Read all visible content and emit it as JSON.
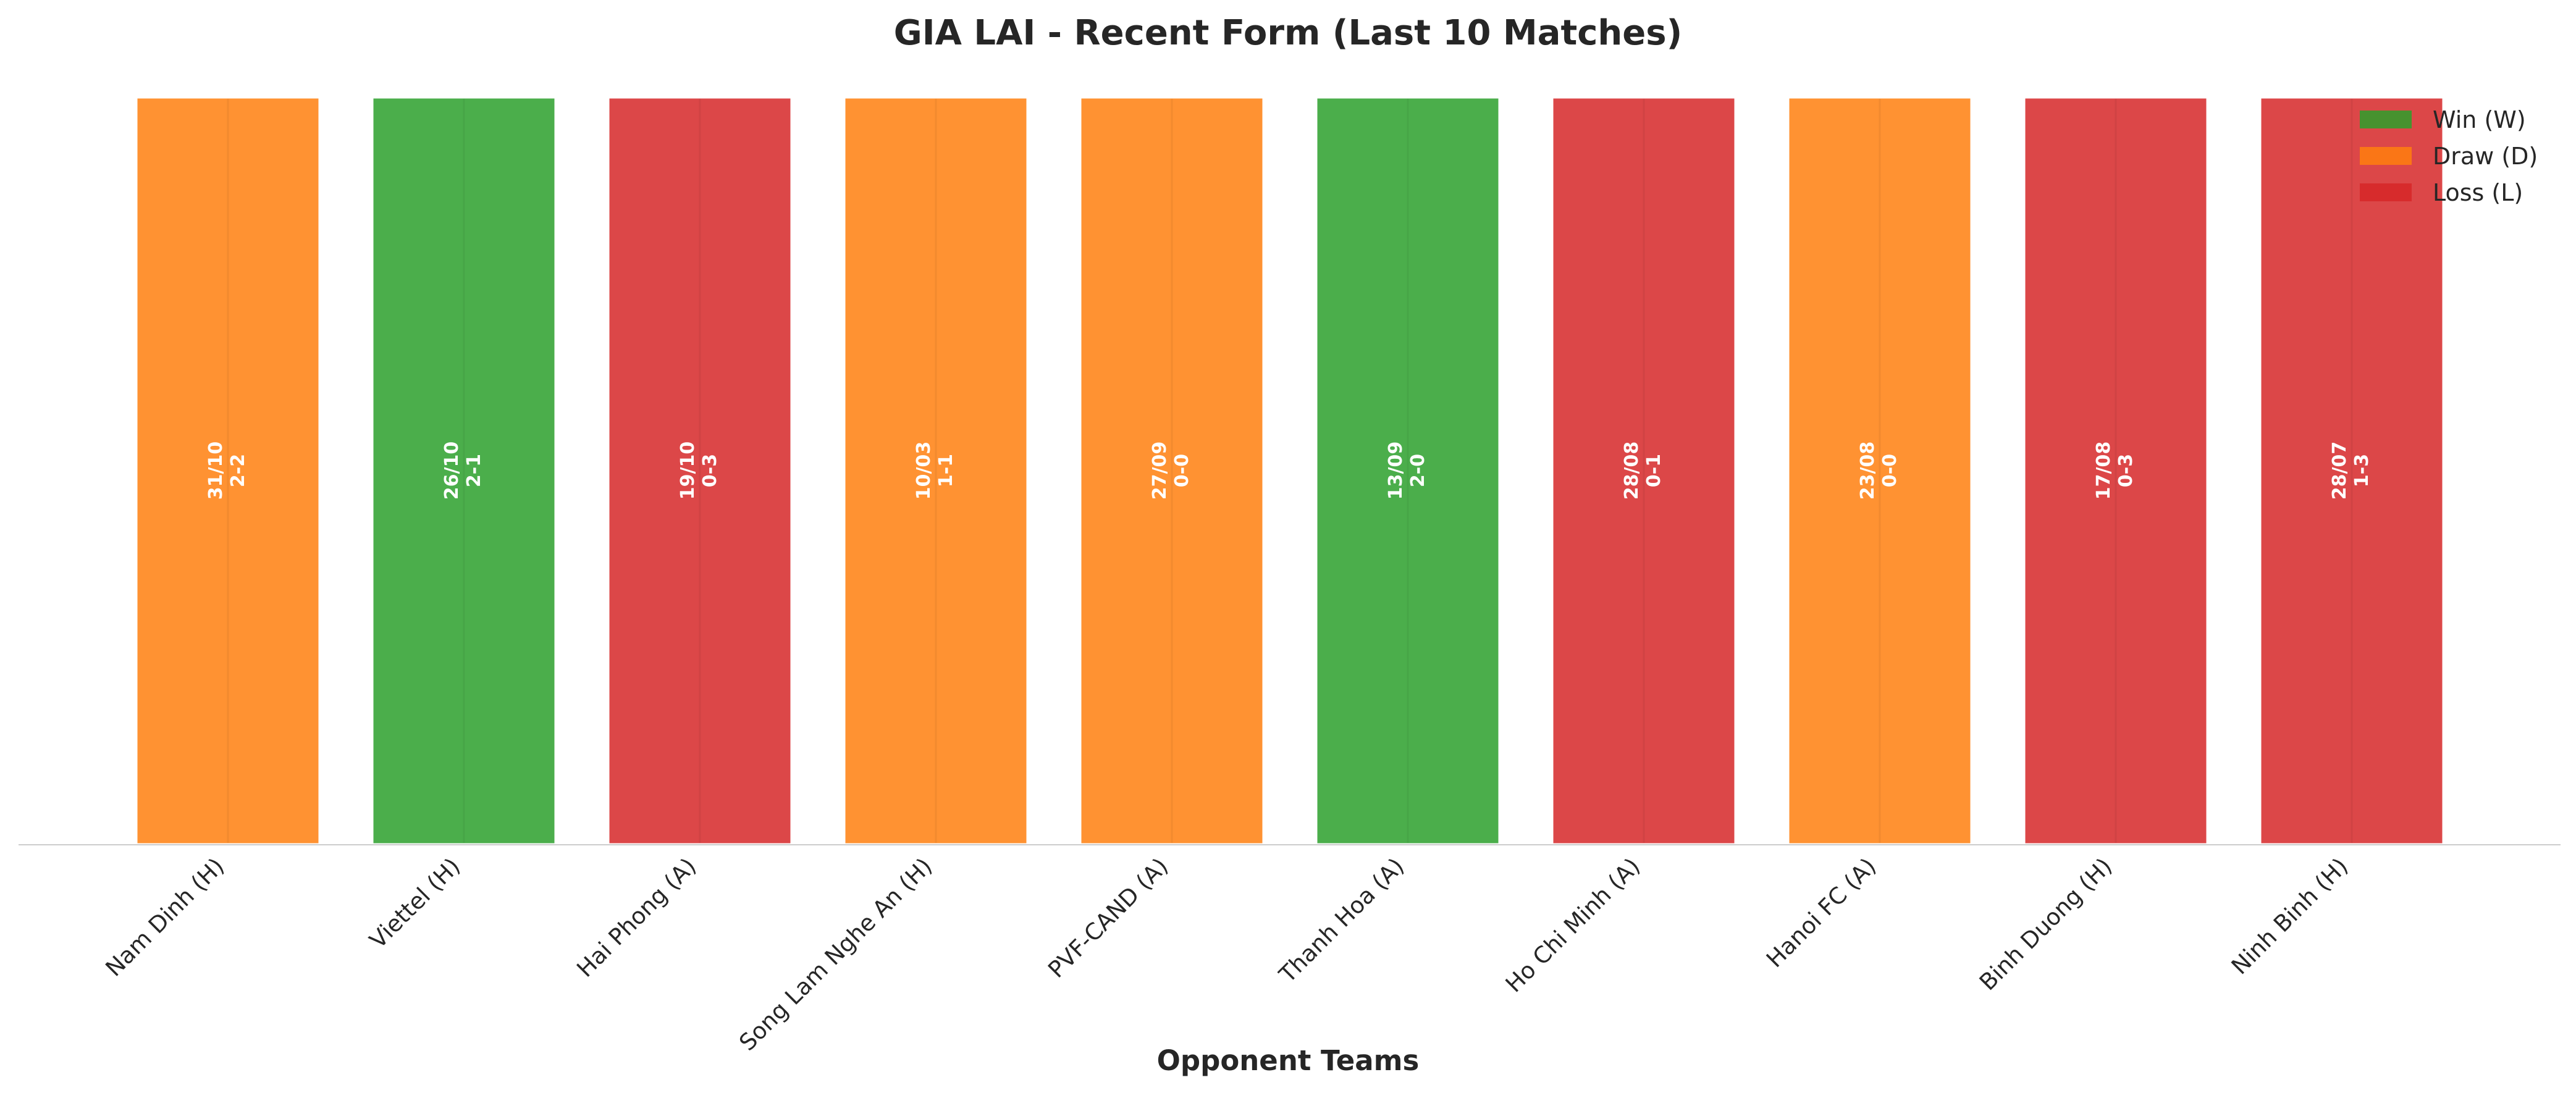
{
  "chart_data": {
    "type": "bar",
    "title": "GIA LAI - Recent Form (Last 10 Matches)",
    "xlabel": "Opponent Teams",
    "ylabel": "",
    "ylim": [
      0,
      1
    ],
    "grid": false,
    "legend_position": "top-right",
    "categories": [
      "Nam Dinh (H)",
      "Viettel (H)",
      "Hai Phong (A)",
      "Song Lam Nghe An (H)",
      "PVF-CAND (A)",
      "Thanh Hoa (A)",
      "Ho Chi Minh (A)",
      "Hanoi FC (A)",
      "Binh Duong (H)",
      "Ninh Binh (H)"
    ],
    "values": [
      1,
      1,
      1,
      1,
      1,
      1,
      1,
      1,
      1,
      1
    ],
    "results": [
      "D",
      "W",
      "L",
      "D",
      "D",
      "W",
      "L",
      "D",
      "L",
      "L"
    ],
    "dates": [
      "31/10",
      "26/10",
      "19/10",
      "10/03",
      "27/09",
      "13/09",
      "28/08",
      "23/08",
      "17/08",
      "28/07"
    ],
    "scores": [
      "2-2",
      "2-1",
      "0-3",
      "1-1",
      "0-0",
      "2-0",
      "0-1",
      "0-0",
      "0-3",
      "1-3"
    ],
    "legend": [
      {
        "key": "W",
        "label": "Win (W)",
        "color": "#2ca02c"
      },
      {
        "key": "D",
        "label": "Draw (D)",
        "color": "#ff7f0e"
      },
      {
        "key": "L",
        "label": "Loss (L)",
        "color": "#d62728"
      }
    ]
  }
}
